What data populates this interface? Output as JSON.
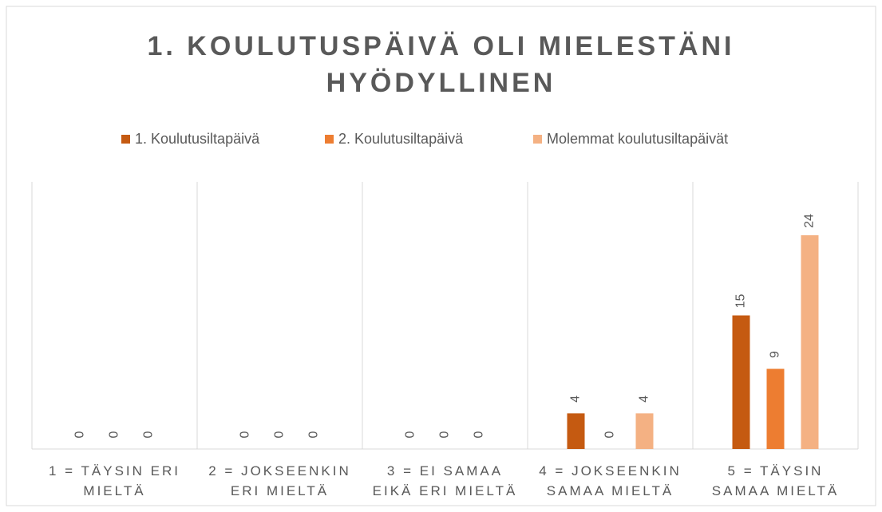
{
  "chart_data": {
    "type": "bar",
    "title": "1. KOULUTUSPÄIVÄ OLI MIELESTÄNI HYÖDYLLINEN",
    "categories": [
      "1 = TÄYSIN ERI MIELTÄ",
      "2 = JOKSEENKIN ERI MIELTÄ",
      "3 = EI SAMAA EIKÄ ERI MIELTÄ",
      "4 = JOKSEENKIN SAMAA MIELTÄ",
      "5 = TÄYSIN SAMAA MIELTÄ"
    ],
    "series": [
      {
        "name": "1. Koulutusiltapäivä",
        "color": "#c55a11",
        "values": [
          0,
          0,
          0,
          4,
          15
        ]
      },
      {
        "name": "2. Koulutusiltapäivä",
        "color": "#ed7d31",
        "values": [
          0,
          0,
          0,
          0,
          9
        ]
      },
      {
        "name": "Molemmat koulutusiltapäivät",
        "color": "#f4b183",
        "values": [
          0,
          0,
          0,
          4,
          24
        ]
      }
    ],
    "ylim": [
      0,
      30
    ],
    "legend": "top",
    "grid": true
  }
}
